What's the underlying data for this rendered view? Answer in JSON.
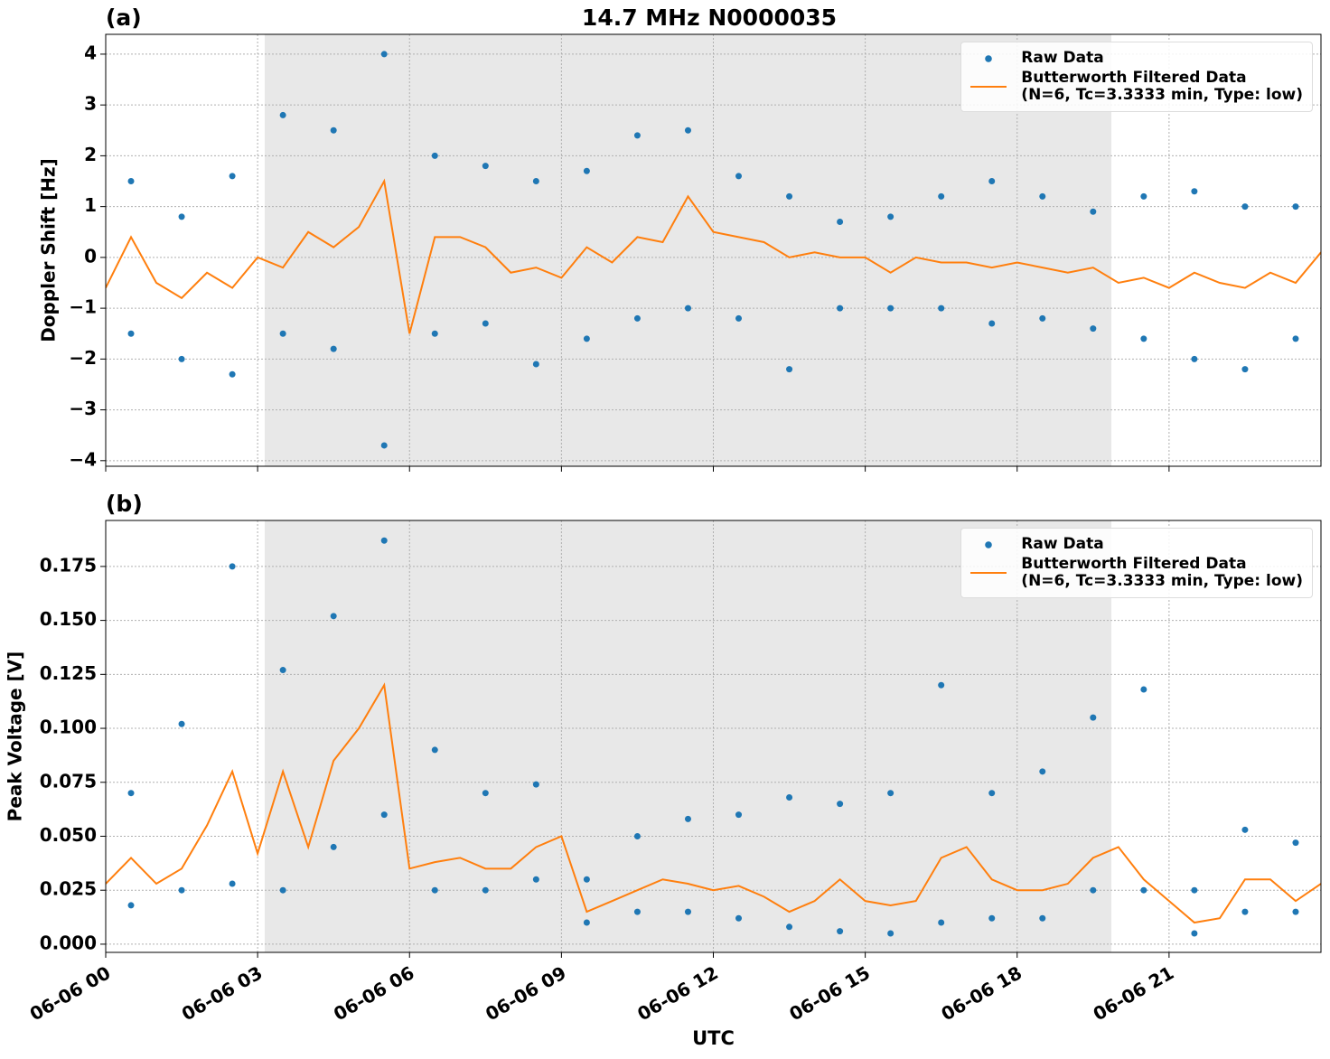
{
  "title": "14.7 MHz N0000035",
  "chart_data": [
    {
      "type": "scatter-line",
      "panel_label": "(a)",
      "ylabel": "Doppler Shift [Hz]",
      "xlim": [
        0,
        24
      ],
      "xticks": [
        0,
        3,
        6,
        9,
        12,
        15,
        18,
        21
      ],
      "ylim": [
        -4.11,
        4.39
      ],
      "yticks": [
        {
          "value": -4,
          "label": "−4"
        },
        {
          "value": -3,
          "label": "−3"
        },
        {
          "value": -2,
          "label": "−2"
        },
        {
          "value": -1,
          "label": "−1"
        },
        0,
        1,
        2,
        3,
        4
      ],
      "grid": true,
      "shade": [
        3.14,
        19.86
      ],
      "shade_color": "#e8e8e8",
      "legend": "upper right",
      "series": [
        {
          "name": "Raw Data",
          "kind": "scatter",
          "color": "#1f77b4",
          "x": [
            0.5,
            0.5,
            1.5,
            1.5,
            2.5,
            2.5,
            3.5,
            3.5,
            4.5,
            4.5,
            5.5,
            5.5,
            6.5,
            6.5,
            7.5,
            7.5,
            8.5,
            8.5,
            9.5,
            9.5,
            10.5,
            10.5,
            11.5,
            11.5,
            12.5,
            12.5,
            13.5,
            13.5,
            14.5,
            14.5,
            15.5,
            15.5,
            16.5,
            16.5,
            17.5,
            17.5,
            18.5,
            18.5,
            19.5,
            19.5,
            20.5,
            20.5,
            21.5,
            21.5,
            22.5,
            22.5,
            23.5,
            23.5
          ],
          "values": [
            1.5,
            -1.5,
            0.8,
            -2.0,
            1.6,
            -2.3,
            2.8,
            -1.5,
            2.5,
            -1.8,
            4.0,
            -3.7,
            2.0,
            -1.5,
            1.8,
            -1.3,
            1.5,
            -2.1,
            1.7,
            -1.6,
            2.4,
            -1.2,
            2.5,
            -1.0,
            1.6,
            -1.2,
            1.2,
            -2.2,
            0.7,
            -1.0,
            0.8,
            -1.0,
            1.2,
            -1.0,
            1.5,
            -1.3,
            1.2,
            -1.2,
            0.9,
            -1.4,
            1.2,
            -1.6,
            1.3,
            -2.0,
            1.0,
            -2.2,
            1.0,
            -1.6
          ]
        },
        {
          "name": "Butterworth Filtered Data\n(N=6, Tc=3.3333 min, Type: low)",
          "kind": "line",
          "color": "#ff7f0e",
          "x": [
            0,
            0.5,
            1,
            1.5,
            2,
            2.5,
            3,
            3.5,
            4,
            4.5,
            5,
            5.5,
            6,
            6.5,
            7,
            7.5,
            8,
            8.5,
            9,
            9.5,
            10,
            10.5,
            11,
            11.5,
            12,
            12.5,
            13,
            13.5,
            14,
            14.5,
            15,
            15.5,
            16,
            16.5,
            17,
            17.5,
            18,
            18.5,
            19,
            19.5,
            20,
            20.5,
            21,
            21.5,
            22,
            22.5,
            23,
            23.5,
            24
          ],
          "values": [
            -0.6,
            0.4,
            -0.5,
            -0.8,
            -0.3,
            -0.6,
            0.0,
            -0.2,
            0.5,
            0.2,
            0.6,
            1.5,
            -1.5,
            0.4,
            0.4,
            0.2,
            -0.3,
            -0.2,
            -0.4,
            0.2,
            -0.1,
            0.4,
            0.3,
            1.2,
            0.5,
            0.4,
            0.3,
            0.0,
            0.1,
            0.0,
            0.0,
            -0.3,
            0.0,
            -0.1,
            -0.1,
            -0.2,
            -0.1,
            -0.2,
            -0.3,
            -0.2,
            -0.5,
            -0.4,
            -0.6,
            -0.3,
            -0.5,
            -0.6,
            -0.3,
            -0.5,
            0.1
          ]
        }
      ]
    },
    {
      "type": "scatter-line",
      "panel_label": "(b)",
      "ylabel": "Peak Voltage [V]",
      "xlabel": "UTC",
      "xlim": [
        0,
        24
      ],
      "xticks": [
        {
          "value": 0,
          "label": "06-06 00"
        },
        {
          "value": 3,
          "label": "06-06 03"
        },
        {
          "value": 6,
          "label": "06-06 06"
        },
        {
          "value": 9,
          "label": "06-06 09"
        },
        {
          "value": 12,
          "label": "06-06 12"
        },
        {
          "value": 15,
          "label": "06-06 15"
        },
        {
          "value": 18,
          "label": "06-06 18"
        },
        {
          "value": 21,
          "label": "06-06 21"
        }
      ],
      "ylim": [
        -0.0038,
        0.1963
      ],
      "yticks": [
        {
          "value": 0,
          "label": "0.000"
        },
        {
          "value": 0.025,
          "label": "0.025"
        },
        {
          "value": 0.05,
          "label": "0.050"
        },
        {
          "value": 0.075,
          "label": "0.075"
        },
        {
          "value": 0.1,
          "label": "0.100"
        },
        {
          "value": 0.125,
          "label": "0.125"
        },
        {
          "value": 0.15,
          "label": "0.150"
        },
        {
          "value": 0.175,
          "label": "0.175"
        }
      ],
      "grid": true,
      "shade": [
        3.14,
        19.86
      ],
      "shade_color": "#e8e8e8",
      "legend": "upper right",
      "series": [
        {
          "name": "Raw Data",
          "kind": "scatter",
          "color": "#1f77b4",
          "x": [
            0.5,
            0.5,
            1.5,
            1.5,
            2.5,
            2.5,
            3.5,
            3.5,
            4.5,
            4.5,
            5.5,
            5.5,
            6.5,
            6.5,
            7.5,
            7.5,
            8.5,
            8.5,
            9.5,
            9.5,
            10.5,
            10.5,
            11.5,
            11.5,
            12.5,
            12.5,
            13.5,
            13.5,
            14.5,
            14.5,
            15.5,
            15.5,
            16.5,
            16.5,
            17.5,
            17.5,
            18.5,
            18.5,
            19.5,
            19.5,
            20.5,
            20.5,
            21.5,
            21.5,
            22.5,
            22.5,
            23.5,
            23.5
          ],
          "values": [
            0.07,
            0.018,
            0.102,
            0.025,
            0.175,
            0.028,
            0.127,
            0.025,
            0.152,
            0.045,
            0.187,
            0.06,
            0.09,
            0.025,
            0.07,
            0.025,
            0.074,
            0.03,
            0.03,
            0.01,
            0.05,
            0.015,
            0.058,
            0.015,
            0.06,
            0.012,
            0.068,
            0.008,
            0.065,
            0.006,
            0.07,
            0.005,
            0.12,
            0.01,
            0.07,
            0.012,
            0.08,
            0.012,
            0.105,
            0.025,
            0.118,
            0.025,
            0.025,
            0.005,
            0.053,
            0.015,
            0.047,
            0.015
          ]
        },
        {
          "name": "Butterworth Filtered Data\n(N=6, Tc=3.3333 min, Type: low)",
          "kind": "line",
          "color": "#ff7f0e",
          "x": [
            0,
            0.5,
            1,
            1.5,
            2,
            2.5,
            3,
            3.5,
            4,
            4.5,
            5,
            5.5,
            6,
            6.5,
            7,
            7.5,
            8,
            8.5,
            9,
            9.5,
            10,
            10.5,
            11,
            11.5,
            12,
            12.5,
            13,
            13.5,
            14,
            14.5,
            15,
            15.5,
            16,
            16.5,
            17,
            17.5,
            18,
            18.5,
            19,
            19.5,
            20,
            20.5,
            21,
            21.5,
            22,
            22.5,
            23,
            23.5,
            24
          ],
          "values": [
            0.028,
            0.04,
            0.028,
            0.035,
            0.055,
            0.08,
            0.042,
            0.08,
            0.045,
            0.085,
            0.1,
            0.12,
            0.035,
            0.038,
            0.04,
            0.035,
            0.035,
            0.045,
            0.05,
            0.015,
            0.02,
            0.025,
            0.03,
            0.028,
            0.025,
            0.027,
            0.022,
            0.015,
            0.02,
            0.03,
            0.02,
            0.018,
            0.02,
            0.04,
            0.045,
            0.03,
            0.025,
            0.025,
            0.028,
            0.04,
            0.045,
            0.03,
            0.02,
            0.01,
            0.012,
            0.03,
            0.03,
            0.02,
            0.028
          ]
        }
      ]
    }
  ]
}
